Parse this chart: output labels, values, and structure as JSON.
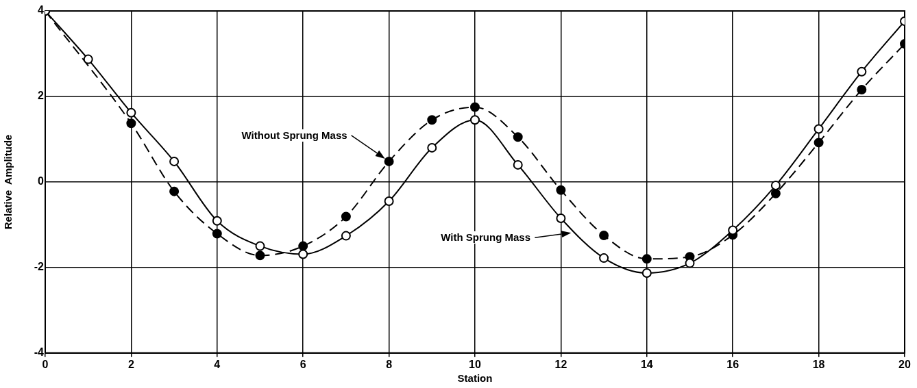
{
  "chart_data": {
    "type": "line",
    "xlabel": "Station",
    "ylabel": "Relative  Amplitude",
    "x": [
      0,
      1,
      2,
      3,
      4,
      5,
      6,
      7,
      8,
      9,
      10,
      11,
      12,
      13,
      14,
      15,
      16,
      17,
      18,
      19,
      20
    ],
    "series": [
      {
        "color": "#000000",
        "line_style": "solid",
        "values": [
          4,
          2.87,
          1.62,
          0.48,
          -0.91,
          -1.5,
          -1.69,
          -1.26,
          -0.45,
          0.8,
          1.45,
          0.4,
          -0.85,
          -1.78,
          -2.13,
          -1.9,
          -1.13,
          -0.08,
          1.24,
          2.58,
          3.76
        ]
      },
      {
        "color": "#000000",
        "line_style": "dashed",
        "values": [
          4,
          null,
          1.37,
          -0.22,
          -1.21,
          -1.72,
          -1.5,
          -0.81,
          0.48,
          1.45,
          1.75,
          1.05,
          -0.19,
          -1.25,
          -1.8,
          -1.75,
          -1.24,
          -0.27,
          0.92,
          2.16,
          3.23
        ]
      }
    ],
    "annotations": [
      "Without Sprung Mass",
      "With Sprung Mass"
    ],
    "xlim": [
      0,
      20
    ],
    "xticks": [
      0,
      2,
      4,
      6,
      8,
      10,
      12,
      14,
      16,
      18,
      20
    ],
    "ylim": [
      -4,
      4
    ],
    "yticks": [
      -4,
      -2,
      0,
      2,
      4
    ],
    "grid": true,
    "marker": "circle"
  }
}
